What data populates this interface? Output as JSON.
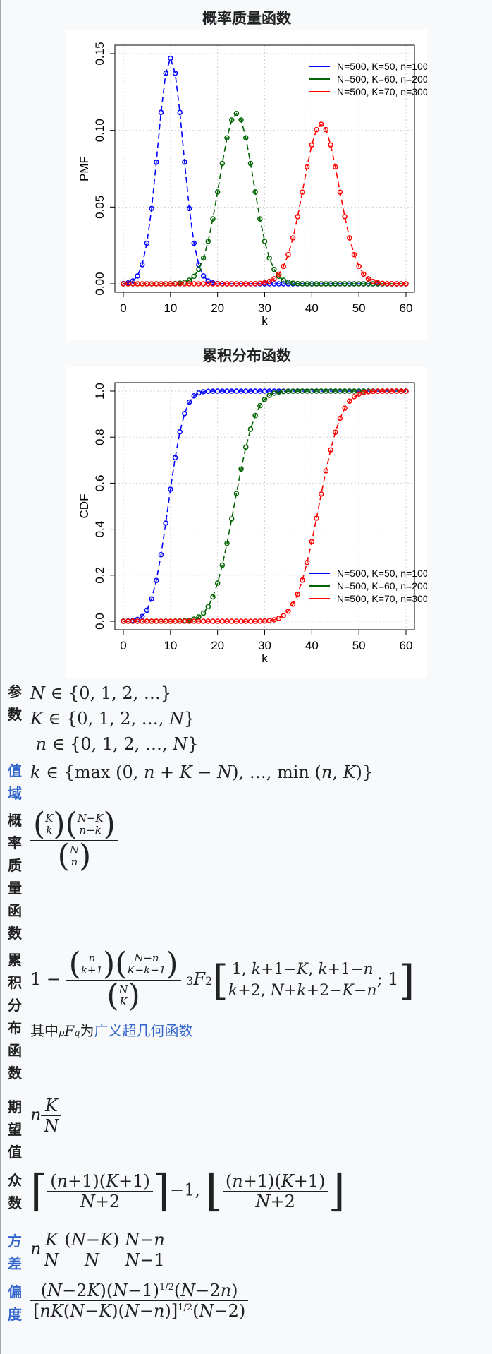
{
  "charts": [
    {
      "title": "概率质量函数",
      "chart_data": {
        "type": "line",
        "ylabel": "PMF",
        "xlabel": "k",
        "xlim": [
          0,
          60
        ],
        "ylim": [
          0,
          0.15
        ],
        "xticks": [
          "0",
          "10",
          "20",
          "30",
          "40",
          "50",
          "60"
        ],
        "yticks": [
          "0.00",
          "0.05",
          "0.10",
          "0.15"
        ],
        "legend_position": "top-right",
        "grid": true,
        "series": [
          {
            "name": "N=500, K=50, n=100",
            "color": "#0000ff",
            "mean": 10.0,
            "sd": 2.7,
            "peak": 0.147
          },
          {
            "name": "N=500, K=60, n=200",
            "color": "#006400",
            "mean": 24.0,
            "sd": 3.6,
            "peak": 0.111
          },
          {
            "name": "N=500, K=70, n=300",
            "color": "#ff0000",
            "mean": 42.0,
            "sd": 3.8,
            "peak": 0.104
          }
        ]
      }
    },
    {
      "title": "累积分布函数",
      "chart_data": {
        "type": "line",
        "ylabel": "CDF",
        "xlabel": "k",
        "xlim": [
          0,
          60
        ],
        "ylim": [
          0,
          1
        ],
        "xticks": [
          "0",
          "10",
          "20",
          "30",
          "40",
          "50",
          "60"
        ],
        "yticks": [
          "0.0",
          "0.2",
          "0.4",
          "0.6",
          "0.8",
          "1.0"
        ],
        "legend_position": "bottom-right",
        "grid": true,
        "series": [
          {
            "name": "N=500, K=50, n=100",
            "color": "#0000ff",
            "mean": 10.0,
            "sd": 2.7
          },
          {
            "name": "N=500, K=60, n=200",
            "color": "#006400",
            "mean": 24.0,
            "sd": 3.6
          },
          {
            "name": "N=500, K=70, n=300",
            "color": "#ff0000",
            "mean": 42.0,
            "sd": 3.8
          }
        ]
      }
    }
  ],
  "infobox": {
    "params_label": "参数",
    "support_label": "值域",
    "pmf_label": "概率质量函数",
    "cdf_label": "累积分布函数",
    "mean_label": "期望值",
    "mode_label": "众数",
    "variance_label": "方差",
    "skew_label": "偏度",
    "cdf_note_prefix": "其中",
    "cdf_note_mid": "为",
    "cdf_note_link": "广义超几何函数"
  }
}
